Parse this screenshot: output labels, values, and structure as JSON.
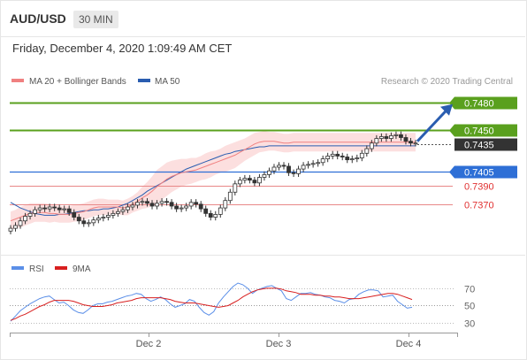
{
  "header": {
    "pair": "AUD/USD",
    "timeframe": "30 MIN"
  },
  "date_line": "Friday, December 4, 2020 1:09:49 AM CET",
  "colors": {
    "ma20": "#f08080",
    "ma50": "#2a5db0",
    "green": "#5aa01e",
    "red": "#e03030",
    "blue": "#2e6fd6",
    "dark": "#333333",
    "rsi": "#5b8fe8",
    "ma9": "#d81f1f"
  },
  "chart_data": [
    {
      "type": "candlestick",
      "title": "",
      "legend": [
        {
          "name": "MA 20 + Bollinger Bands",
          "color": "#f08080"
        },
        {
          "name": "MA 50",
          "color": "#2a5db0"
        }
      ],
      "watermark": "Research © 2020 Trading Central",
      "ylim": [
        0.7325,
        0.7495
      ],
      "x_ticks": [
        "Dec 2",
        "Dec 3",
        "Dec 4"
      ],
      "levels": [
        {
          "label": "0.7480",
          "value": 0.748,
          "kind": "resistance",
          "color": "#5aa01e"
        },
        {
          "label": "0.7450",
          "value": 0.745,
          "kind": "resistance",
          "color": "#5aa01e"
        },
        {
          "label": "0.7435",
          "value": 0.7435,
          "kind": "last",
          "color": "#333333"
        },
        {
          "label": "0.7405",
          "value": 0.7405,
          "kind": "pivot",
          "color": "#2e6fd6"
        },
        {
          "label": "0.7390",
          "value": 0.739,
          "kind": "support",
          "color": "#e03030"
        },
        {
          "label": "0.7370",
          "value": 0.737,
          "kind": "support",
          "color": "#e03030"
        }
      ],
      "close": [
        0.7344,
        0.7347,
        0.7352,
        0.7357,
        0.736,
        0.7364,
        0.7366,
        0.7365,
        0.7367,
        0.7366,
        0.7364,
        0.7365,
        0.7361,
        0.7356,
        0.7352,
        0.7349,
        0.735,
        0.7353,
        0.7355,
        0.7356,
        0.7358,
        0.736,
        0.7362,
        0.7364,
        0.7367,
        0.7369,
        0.7372,
        0.7373,
        0.7371,
        0.7368,
        0.7371,
        0.7373,
        0.7372,
        0.7368,
        0.7365,
        0.7366,
        0.7368,
        0.7372,
        0.737,
        0.7365,
        0.736,
        0.7356,
        0.7359,
        0.7366,
        0.7374,
        0.7383,
        0.7392,
        0.7396,
        0.7398,
        0.7396,
        0.7393,
        0.7399,
        0.7402,
        0.7406,
        0.741,
        0.7412,
        0.7411,
        0.7404,
        0.7403,
        0.7408,
        0.7412,
        0.7413,
        0.7414,
        0.7415,
        0.7419,
        0.7422,
        0.7424,
        0.7422,
        0.7421,
        0.7418,
        0.7419,
        0.742,
        0.7425,
        0.743,
        0.7436,
        0.7441,
        0.7443,
        0.7441,
        0.7444,
        0.7445,
        0.7442,
        0.7438,
        0.7436,
        0.7436
      ],
      "ma20": [
        0.7352,
        0.7354,
        0.7356,
        0.7358,
        0.736,
        0.7361,
        0.7361,
        0.7361,
        0.736,
        0.736,
        0.7359,
        0.7359,
        0.7359,
        0.736,
        0.7361,
        0.7362,
        0.7364,
        0.7366,
        0.7367,
        0.7367,
        0.7367,
        0.7367,
        0.7367,
        0.7366,
        0.7367,
        0.737,
        0.7373,
        0.7377,
        0.738,
        0.7384,
        0.7389,
        0.7393,
        0.7397,
        0.74,
        0.7402,
        0.7404,
        0.7405,
        0.7406,
        0.7407,
        0.7409,
        0.7411,
        0.7413,
        0.7415,
        0.7417,
        0.7419,
        0.7421,
        0.7423,
        0.7426,
        0.7429,
        0.7432,
        0.7435,
        0.7437,
        0.7438,
        0.7438,
        0.7438,
        0.7437,
        0.7436,
        0.7436,
        0.7437,
        0.7437,
        0.7437,
        0.7437,
        0.7437,
        0.7437,
        0.7437,
        0.7437,
        0.7437,
        0.7437,
        0.7437,
        0.7437,
        0.7437,
        0.7437,
        0.7437,
        0.7437,
        0.7437,
        0.7437,
        0.7437,
        0.7437,
        0.7437,
        0.7437,
        0.7437,
        0.7437,
        0.7437,
        0.7437
      ],
      "ma50": [
        0.7372,
        0.7369,
        0.7366,
        0.7364,
        0.7362,
        0.736,
        0.7359,
        0.7358,
        0.7358,
        0.7358,
        0.7359,
        0.7359,
        0.736,
        0.7361,
        0.7362,
        0.7363,
        0.7363,
        0.7364,
        0.7364,
        0.7365,
        0.7365,
        0.7366,
        0.7367,
        0.7369,
        0.7371,
        0.7374,
        0.7377,
        0.738,
        0.7384,
        0.7387,
        0.739,
        0.7393,
        0.7396,
        0.7399,
        0.7402,
        0.7405,
        0.7408,
        0.741,
        0.7412,
        0.7414,
        0.7416,
        0.7418,
        0.742,
        0.7422,
        0.7424,
        0.7425,
        0.7427,
        0.7428,
        0.7429,
        0.743,
        0.7431,
        0.7432,
        0.7432,
        0.7433,
        0.7433,
        0.7433,
        0.7433,
        0.7433,
        0.7433,
        0.7433,
        0.7433,
        0.7433,
        0.7433,
        0.7433,
        0.7433,
        0.7433,
        0.7433,
        0.7433,
        0.7433,
        0.7433,
        0.7433,
        0.7433,
        0.7433,
        0.7433,
        0.7433,
        0.7433,
        0.7433,
        0.7433,
        0.7433,
        0.7433,
        0.7433,
        0.7433,
        0.7433,
        0.7433
      ],
      "bb_width": [
        0.001,
        0.001,
        0.0011,
        0.0011,
        0.0011,
        0.001,
        0.001,
        0.001,
        0.001,
        0.0009,
        0.0009,
        0.0009,
        0.0009,
        0.0009,
        0.0009,
        0.0009,
        0.0009,
        0.0009,
        0.0009,
        0.0009,
        0.0008,
        0.0008,
        0.0008,
        0.0008,
        0.0009,
        0.0009,
        0.001,
        0.0012,
        0.0014,
        0.0016,
        0.0018,
        0.0018,
        0.0018,
        0.0017,
        0.0016,
        0.0015,
        0.0014,
        0.0014,
        0.0013,
        0.0013,
        0.0014,
        0.0014,
        0.0013,
        0.0013,
        0.0014,
        0.0014,
        0.0014,
        0.0013,
        0.0012,
        0.0012,
        0.0012,
        0.0011,
        0.0011,
        0.001,
        0.001,
        0.001,
        0.001,
        0.001,
        0.001,
        0.001,
        0.001,
        0.001,
        0.001,
        0.001,
        0.001,
        0.001,
        0.001,
        0.001,
        0.001,
        0.001,
        0.001,
        0.001,
        0.001,
        0.001,
        0.001,
        0.001,
        0.001,
        0.001,
        0.001,
        0.001,
        0.001,
        0.001,
        0.001,
        0.001
      ]
    },
    {
      "type": "line",
      "title": "",
      "legend": [
        {
          "name": "RSI",
          "color": "#5b8fe8"
        },
        {
          "name": "9MA",
          "color": "#d81f1f"
        }
      ],
      "ylim": [
        24,
        78
      ],
      "y_ticks": [
        70,
        50,
        30
      ],
      "rsi": [
        32,
        38,
        44,
        48,
        52,
        55,
        58,
        60,
        61,
        57,
        53,
        54,
        50,
        45,
        42,
        41,
        45,
        50,
        52,
        52,
        54,
        55,
        57,
        59,
        61,
        62,
        64,
        63,
        58,
        55,
        57,
        60,
        57,
        52,
        48,
        50,
        52,
        57,
        55,
        48,
        42,
        39,
        43,
        53,
        60,
        66,
        72,
        76,
        74,
        70,
        64,
        68,
        70,
        72,
        73,
        70,
        67,
        58,
        56,
        60,
        64,
        64,
        65,
        63,
        62,
        60,
        59,
        56,
        55,
        53,
        57,
        58,
        63,
        66,
        68,
        68,
        67,
        60,
        61,
        62,
        55,
        51,
        47,
        48
      ],
      "ma9": [
        33,
        35,
        38,
        40,
        43,
        46,
        49,
        51,
        54,
        56,
        56,
        56,
        56,
        55,
        53,
        51,
        50,
        49,
        49,
        49,
        50,
        51,
        53,
        54,
        55,
        56,
        58,
        59,
        59,
        59,
        59,
        59,
        58,
        57,
        55,
        54,
        53,
        53,
        53,
        52,
        51,
        50,
        49,
        48,
        49,
        50,
        53,
        56,
        60,
        63,
        66,
        68,
        69,
        70,
        70,
        70,
        69,
        67,
        66,
        65,
        63,
        63,
        63,
        62,
        62,
        61,
        61,
        60,
        60,
        59,
        58,
        58,
        58,
        59,
        60,
        61,
        62,
        63,
        64,
        64,
        63,
        61,
        59,
        57
      ]
    }
  ]
}
